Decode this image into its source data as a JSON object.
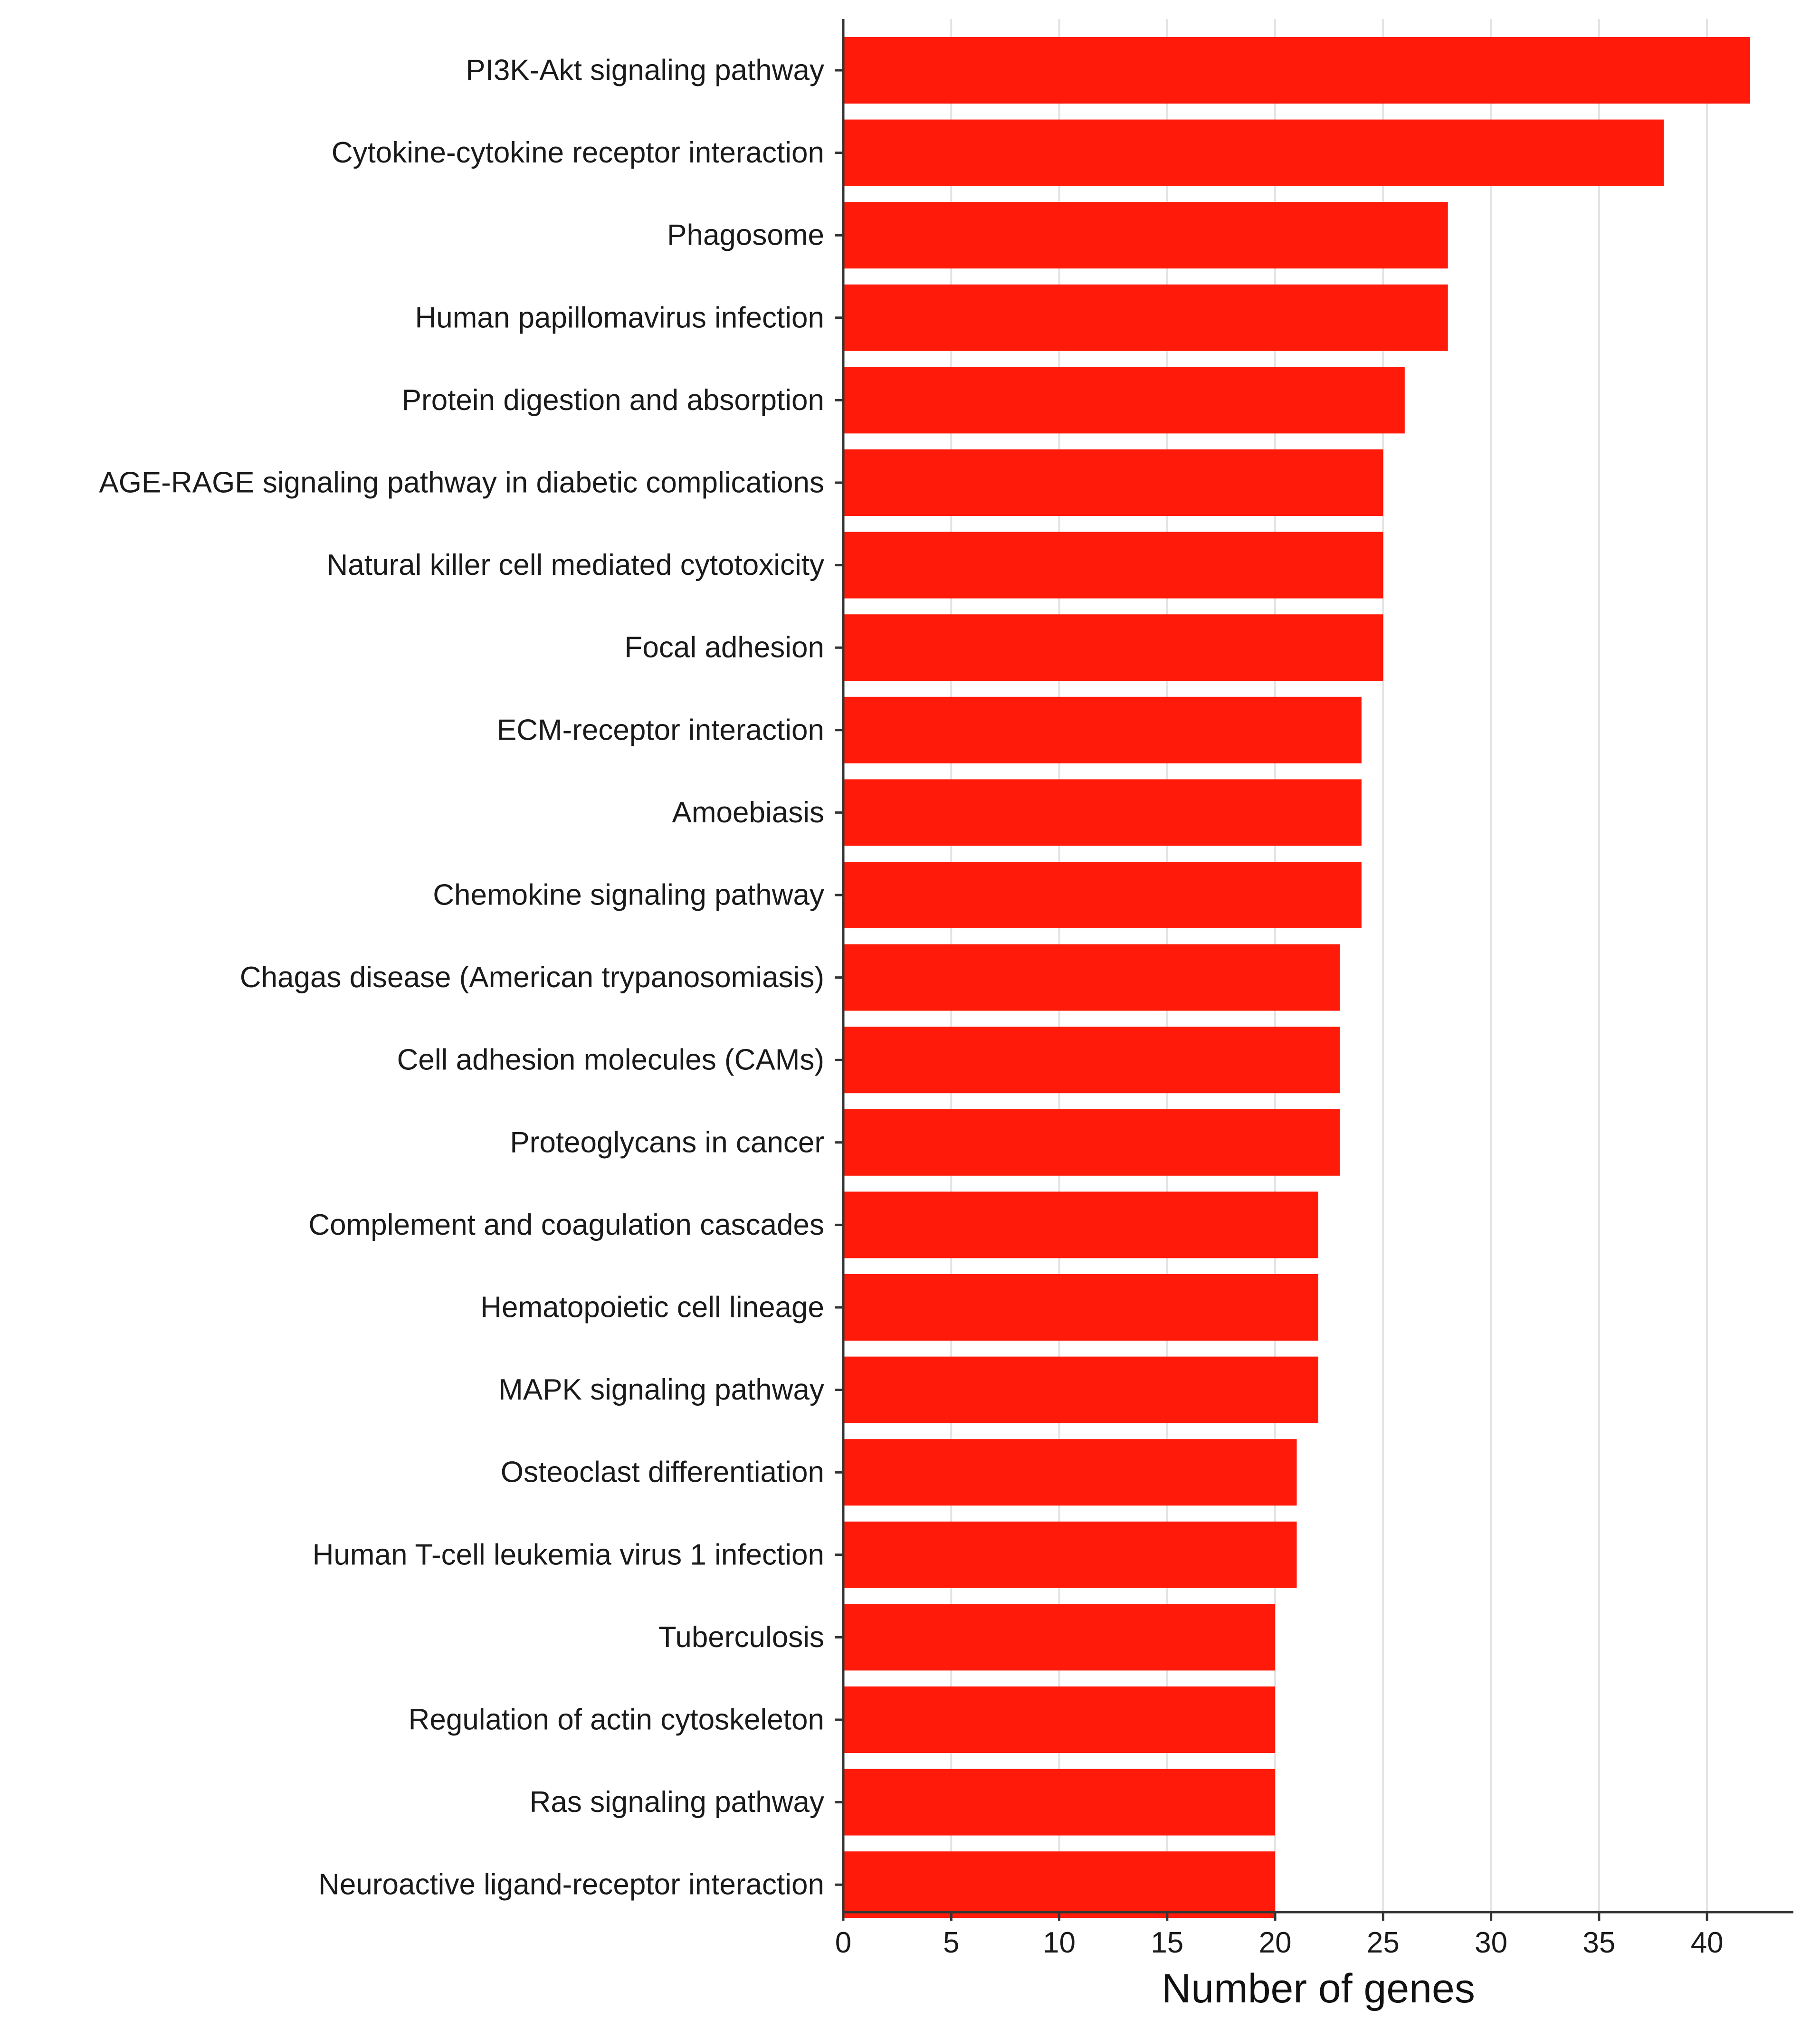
{
  "chart_data": {
    "type": "bar",
    "orientation": "horizontal",
    "title": "",
    "xlabel": "Number of genes",
    "ylabel": "",
    "xlim": [
      0,
      44
    ],
    "xticks": [
      0,
      5,
      10,
      15,
      20,
      25,
      30,
      35,
      40
    ],
    "grid": "vertical major gridlines",
    "bar_color": "#ff1a0a",
    "categories": [
      "PI3K-Akt signaling pathway",
      "Cytokine-cytokine receptor interaction",
      "Phagosome",
      "Human papillomavirus infection",
      "Protein digestion and absorption",
      "AGE-RAGE signaling pathway in diabetic complications",
      "Natural killer cell mediated cytotoxicity",
      "Focal adhesion",
      "ECM-receptor interaction",
      "Amoebiasis",
      "Chemokine signaling pathway",
      "Chagas disease (American trypanosomiasis)",
      "Cell adhesion molecules (CAMs)",
      "Proteoglycans in cancer",
      "Complement and coagulation cascades",
      "Hematopoietic cell lineage",
      "MAPK signaling pathway",
      "Osteoclast differentiation",
      "Human T-cell leukemia virus 1 infection",
      "Tuberculosis",
      "Regulation of actin cytoskeleton",
      "Ras signaling pathway",
      "Neuroactive ligand-receptor interaction"
    ],
    "values": [
      42,
      38,
      28,
      28,
      26,
      25,
      25,
      25,
      24,
      24,
      24,
      23,
      23,
      23,
      22,
      22,
      22,
      21,
      21,
      20,
      20,
      20,
      20
    ]
  }
}
